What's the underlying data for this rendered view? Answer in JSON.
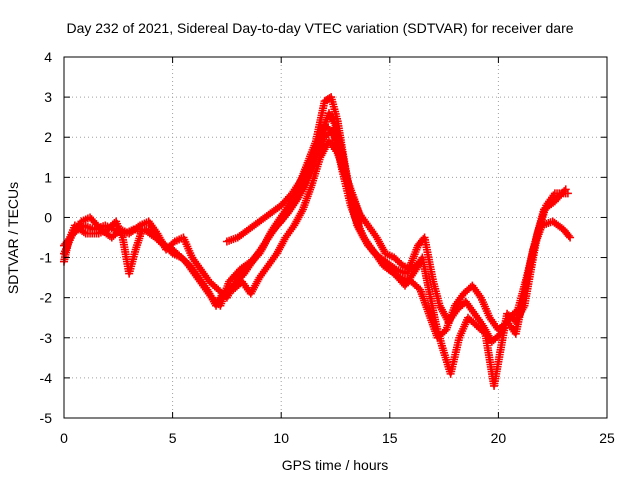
{
  "chart_data": {
    "type": "scatter",
    "title": "Day 232 of 2021, Sidereal Day-to-day VTEC variation (SDTVAR) for receiver dare",
    "xlabel": "GPS time / hours",
    "ylabel": "SDTVAR / TECUs",
    "xlim": [
      0,
      25
    ],
    "ylim": [
      -5,
      4
    ],
    "xticks": [
      0,
      5,
      10,
      15,
      20,
      25
    ],
    "yticks": [
      -5,
      -4,
      -3,
      -2,
      -1,
      0,
      1,
      2,
      3,
      4
    ],
    "grid": true,
    "marker": "+",
    "series": [
      {
        "name": "track-a",
        "color": "#ff0000",
        "points": [
          [
            0.0,
            -1.1
          ],
          [
            0.2,
            -0.6
          ],
          [
            0.5,
            -0.2
          ],
          [
            1.0,
            -0.4
          ],
          [
            1.6,
            -0.4
          ],
          [
            2.0,
            -0.3
          ],
          [
            2.4,
            -0.1
          ],
          [
            2.7,
            -0.5
          ],
          [
            3.0,
            -1.4
          ],
          [
            3.3,
            -0.8
          ],
          [
            3.6,
            -0.3
          ],
          [
            4.0,
            -0.3
          ],
          [
            4.5,
            -0.6
          ],
          [
            5.0,
            -0.9
          ],
          [
            5.4,
            -1.0
          ],
          [
            5.8,
            -1.2
          ],
          [
            6.2,
            -1.5
          ],
          [
            6.6,
            -1.8
          ],
          [
            7.0,
            -2.2
          ],
          [
            7.3,
            -1.9
          ],
          [
            7.8,
            -1.7
          ],
          [
            8.3,
            -1.4
          ],
          [
            8.8,
            -1.0
          ],
          [
            9.3,
            -0.6
          ],
          [
            9.8,
            -0.2
          ],
          [
            10.3,
            0.1
          ],
          [
            10.8,
            0.5
          ],
          [
            11.3,
            1.1
          ],
          [
            11.8,
            2.0
          ],
          [
            12.2,
            2.6
          ],
          [
            12.5,
            2.3
          ],
          [
            12.8,
            1.6
          ],
          [
            13.1,
            0.8
          ],
          [
            13.4,
            0.0
          ],
          [
            13.8,
            -0.5
          ],
          [
            14.2,
            -0.8
          ],
          [
            14.7,
            -1.2
          ],
          [
            15.2,
            -1.4
          ],
          [
            15.7,
            -1.7
          ],
          [
            16.2,
            -1.3
          ],
          [
            16.5,
            -1.0
          ],
          [
            16.8,
            -1.8
          ],
          [
            17.1,
            -2.6
          ],
          [
            17.4,
            -3.2
          ],
          [
            17.8,
            -3.9
          ],
          [
            18.2,
            -3.0
          ],
          [
            18.6,
            -2.5
          ],
          [
            19.0,
            -2.7
          ],
          [
            19.4,
            -2.9
          ],
          [
            19.8,
            -4.2
          ],
          [
            20.1,
            -3.3
          ],
          [
            20.4,
            -2.4
          ],
          [
            20.8,
            -2.6
          ],
          [
            21.2,
            -2.2
          ],
          [
            21.5,
            -1.3
          ],
          [
            21.8,
            -0.4
          ],
          [
            22.2,
            0.3
          ],
          [
            22.6,
            0.6
          ],
          [
            23.2,
            0.6
          ]
        ]
      },
      {
        "name": "track-b",
        "color": "#ff0000",
        "points": [
          [
            0.0,
            -0.7
          ],
          [
            0.3,
            -0.5
          ],
          [
            0.8,
            -0.1
          ],
          [
            1.2,
            0.0
          ],
          [
            1.7,
            -0.3
          ],
          [
            2.2,
            -0.5
          ],
          [
            2.6,
            -0.3
          ],
          [
            3.0,
            -0.4
          ],
          [
            3.5,
            -0.2
          ],
          [
            3.9,
            -0.1
          ],
          [
            4.3,
            -0.4
          ],
          [
            4.7,
            -0.8
          ],
          [
            5.1,
            -0.6
          ],
          [
            5.5,
            -0.5
          ],
          [
            5.9,
            -1.0
          ],
          [
            6.3,
            -1.3
          ],
          [
            6.7,
            -1.6
          ],
          [
            7.1,
            -1.8
          ],
          [
            7.5,
            -2.0
          ],
          [
            8.0,
            -1.5
          ],
          [
            8.5,
            -1.2
          ],
          [
            9.0,
            -0.9
          ],
          [
            9.5,
            -0.4
          ],
          [
            10.0,
            -0.1
          ],
          [
            10.5,
            0.3
          ],
          [
            11.0,
            0.7
          ],
          [
            11.5,
            1.4
          ],
          [
            12.0,
            2.0
          ],
          [
            12.4,
            2.2
          ],
          [
            12.8,
            1.2
          ],
          [
            13.2,
            0.3
          ],
          [
            13.6,
            -0.3
          ],
          [
            14.0,
            -0.7
          ],
          [
            14.5,
            -1.0
          ],
          [
            15.0,
            -1.3
          ],
          [
            15.5,
            -1.5
          ],
          [
            16.0,
            -1.6
          ],
          [
            16.4,
            -1.8
          ],
          [
            16.8,
            -2.4
          ],
          [
            17.2,
            -3.0
          ],
          [
            17.6,
            -2.8
          ],
          [
            18.0,
            -2.2
          ],
          [
            18.4,
            -1.9
          ],
          [
            18.8,
            -1.7
          ],
          [
            19.2,
            -2.0
          ],
          [
            19.6,
            -2.5
          ],
          [
            20.0,
            -2.8
          ],
          [
            20.4,
            -2.6
          ],
          [
            20.8,
            -2.9
          ],
          [
            21.2,
            -1.9
          ],
          [
            21.6,
            -0.8
          ],
          [
            22.0,
            -0.2
          ],
          [
            22.5,
            -0.1
          ],
          [
            23.0,
            -0.3
          ],
          [
            23.3,
            -0.5
          ]
        ]
      },
      {
        "name": "track-c",
        "color": "#ff0000",
        "points": [
          [
            0.0,
            -0.9
          ],
          [
            0.4,
            -0.4
          ],
          [
            0.9,
            -0.2
          ],
          [
            1.4,
            -0.3
          ],
          [
            1.9,
            -0.2
          ],
          [
            2.3,
            -0.3
          ],
          [
            2.8,
            -0.4
          ],
          [
            3.2,
            -0.3
          ],
          [
            3.7,
            -0.3
          ],
          [
            4.2,
            -0.5
          ],
          [
            4.6,
            -0.7
          ],
          [
            5.0,
            -0.8
          ],
          [
            5.6,
            -1.1
          ],
          [
            6.0,
            -1.4
          ],
          [
            6.4,
            -1.7
          ],
          [
            6.8,
            -2.0
          ],
          [
            7.2,
            -2.2
          ],
          [
            7.6,
            -1.6
          ],
          [
            8.1,
            -1.3
          ],
          [
            8.6,
            -1.1
          ],
          [
            9.1,
            -0.8
          ],
          [
            9.6,
            -0.3
          ],
          [
            10.1,
            0.1
          ],
          [
            10.6,
            0.5
          ],
          [
            11.1,
            1.2
          ],
          [
            11.6,
            1.9
          ],
          [
            12.0,
            2.9
          ],
          [
            12.3,
            3.0
          ],
          [
            12.6,
            2.4
          ],
          [
            12.9,
            1.4
          ],
          [
            13.2,
            0.5
          ],
          [
            13.5,
            -0.2
          ],
          [
            13.9,
            -0.6
          ],
          [
            14.3,
            -0.9
          ],
          [
            14.8,
            -1.1
          ],
          [
            15.3,
            -1.3
          ],
          [
            15.8,
            -1.4
          ],
          [
            16.3,
            -0.7
          ],
          [
            16.6,
            -0.5
          ],
          [
            17.0,
            -1.6
          ],
          [
            17.3,
            -2.2
          ],
          [
            17.7,
            -2.6
          ],
          [
            18.1,
            -2.3
          ],
          [
            18.5,
            -2.1
          ],
          [
            18.9,
            -2.4
          ],
          [
            19.3,
            -2.7
          ],
          [
            19.7,
            -3.1
          ],
          [
            20.1,
            -2.9
          ],
          [
            20.5,
            -2.5
          ],
          [
            20.9,
            -2.3
          ],
          [
            21.3,
            -1.5
          ],
          [
            21.7,
            -0.6
          ],
          [
            22.1,
            0.2
          ],
          [
            22.6,
            0.4
          ],
          [
            23.1,
            0.7
          ]
        ]
      },
      {
        "name": "track-d",
        "color": "#ff0000",
        "points": [
          [
            7.5,
            -0.6
          ],
          [
            8.0,
            -0.5
          ],
          [
            8.5,
            -0.3
          ],
          [
            9.0,
            -0.1
          ],
          [
            9.5,
            0.1
          ],
          [
            10.0,
            0.3
          ],
          [
            10.5,
            0.6
          ],
          [
            11.0,
            1.0
          ],
          [
            11.5,
            1.6
          ],
          [
            12.0,
            2.3
          ],
          [
            12.4,
            2.1
          ],
          [
            12.8,
            1.3
          ],
          [
            13.2,
            0.6
          ],
          [
            13.6,
            0.1
          ],
          [
            14.0,
            -0.2
          ],
          [
            14.4,
            -0.5
          ],
          [
            14.8,
            -0.9
          ],
          [
            15.2,
            -1.0
          ],
          [
            15.6,
            -1.2
          ],
          [
            16.0,
            -1.3
          ],
          [
            16.4,
            -1.1
          ]
        ]
      },
      {
        "name": "track-e",
        "color": "#ff0000",
        "points": [
          [
            7.8,
            -1.8
          ],
          [
            8.2,
            -1.6
          ],
          [
            8.6,
            -1.9
          ],
          [
            9.0,
            -1.5
          ],
          [
            9.4,
            -1.2
          ],
          [
            9.8,
            -0.9
          ],
          [
            10.2,
            -0.5
          ],
          [
            10.6,
            -0.2
          ],
          [
            11.0,
            0.2
          ],
          [
            11.4,
            0.8
          ],
          [
            11.8,
            1.5
          ],
          [
            12.2,
            1.9
          ],
          [
            12.6,
            1.6
          ],
          [
            13.0,
            1.0
          ],
          [
            13.4,
            0.4
          ],
          [
            13.7,
            -0.1
          ]
        ]
      }
    ]
  }
}
